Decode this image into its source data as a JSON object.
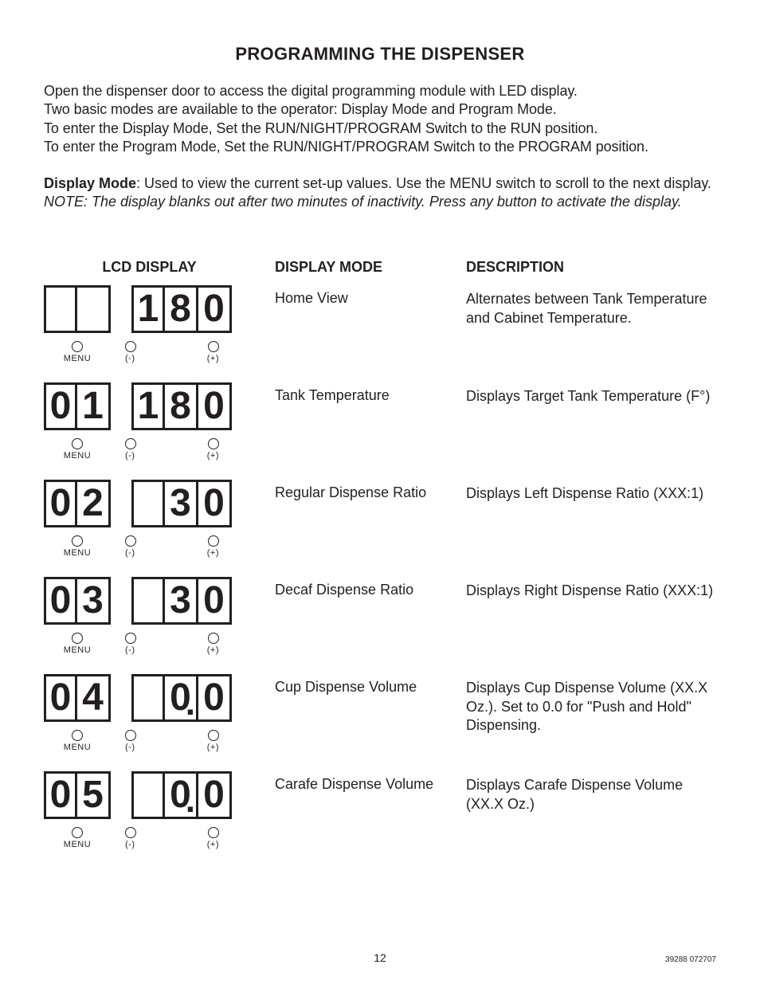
{
  "title": "PROGRAMMING THE DISPENSER",
  "intro": {
    "l1": "Open the dispenser door to access the digital programming module with LED display.",
    "l2": "Two basic modes are available to the operator: Display Mode and Program Mode.",
    "l3": "To enter the Display Mode, Set the RUN/NIGHT/PROGRAM Switch to the RUN position.",
    "l4": "To enter the Program Mode, Set the RUN/NIGHT/PROGRAM Switch to the PROGRAM position."
  },
  "mode": {
    "label": "Display Mode",
    "desc": ": Used to view the current set-up values. Use the MENU switch to scroll to the next display.",
    "note": "NOTE: The display blanks out after two minutes of inactivity. Press any button to activate the display."
  },
  "headers": {
    "h1": "LCD DISPLAY",
    "h2": "DISPLAY MODE",
    "h3": "DESCRIPTION"
  },
  "btn_labels": {
    "menu": "MENU",
    "minus": "(-)",
    "plus": "(+)"
  },
  "rows": [
    {
      "left": [
        "",
        ""
      ],
      "right": [
        "1",
        "8",
        "0"
      ],
      "right_dec_idx": -1,
      "mode": "Home View",
      "desc": "Alternates between Tank Temperature and Cabinet Temperature."
    },
    {
      "left": [
        "0",
        "1"
      ],
      "right": [
        "1",
        "8",
        "0"
      ],
      "right_dec_idx": -1,
      "mode": "Tank Temperature",
      "desc": "Displays Target Tank Temperature (F°)"
    },
    {
      "left": [
        "0",
        "2"
      ],
      "right": [
        "",
        "3",
        "0"
      ],
      "right_dec_idx": -1,
      "mode": "Regular Dispense Ratio",
      "desc": "Displays Left Dispense Ratio (XXX:1)"
    },
    {
      "left": [
        "0",
        "3"
      ],
      "right": [
        "",
        "3",
        "0"
      ],
      "right_dec_idx": -1,
      "mode": "Decaf Dispense Ratio",
      "desc": "Displays Right Dispense Ratio (XXX:1)"
    },
    {
      "left": [
        "0",
        "4"
      ],
      "right": [
        "",
        "0",
        "0"
      ],
      "right_dec_idx": 1,
      "mode": "Cup Dispense Volume",
      "desc": "Displays Cup Dispense Volume (XX.X Oz.). Set to 0.0 for \"Push and Hold\" Dispensing."
    },
    {
      "left": [
        "0",
        "5"
      ],
      "right": [
        "",
        "0",
        "0"
      ],
      "right_dec_idx": 1,
      "mode": "Carafe Dispense Volume",
      "desc": "Displays Carafe Dispense Volume (XX.X Oz.)"
    }
  ],
  "footer": {
    "page": "12",
    "docnum": "39288 072707"
  }
}
